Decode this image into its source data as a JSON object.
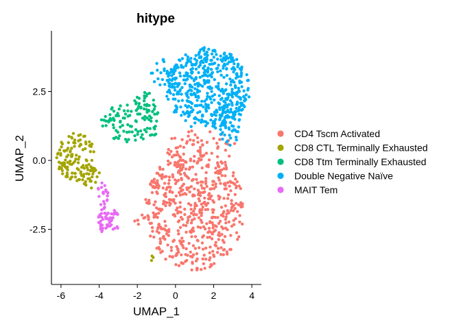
{
  "chart_data": {
    "type": "scatter",
    "title": "hitype",
    "xlabel": "UMAP_1",
    "ylabel": "UMAP_2",
    "xlim": [
      -6.5,
      4.5
    ],
    "ylim": [
      -4.5,
      4.7
    ],
    "xticks": [
      -6,
      -4,
      -2,
      0,
      2,
      4
    ],
    "yticks": [
      -2.5,
      0.0,
      2.5
    ],
    "ytick_labels": [
      "-2.5",
      "0.0",
      "2.5"
    ],
    "grid": false,
    "legend_position": "right",
    "series": [
      {
        "name": "CD4 Tscm Activated",
        "color": "#F8766D",
        "clusters": [
          {
            "cx": 1.0,
            "cy": -1.8,
            "rx": 2.6,
            "ry": 2.2,
            "n": 560,
            "seed": 11
          },
          {
            "cx": 1.3,
            "cy": 0.5,
            "rx": 1.9,
            "ry": 0.6,
            "n": 50,
            "seed": 12
          },
          {
            "cx": -1.7,
            "cy": -2.1,
            "rx": 0.5,
            "ry": 0.3,
            "n": 8,
            "seed": 13
          }
        ]
      },
      {
        "name": "CD8 CTL Terminally Exhausted",
        "color": "#A3A500",
        "clusters": [
          {
            "cx": -5.2,
            "cy": 0.1,
            "rx": 1.05,
            "ry": 0.9,
            "n": 110,
            "seed": 21
          },
          {
            "cx": -4.5,
            "cy": -0.6,
            "rx": 0.6,
            "ry": 0.5,
            "n": 30,
            "seed": 22
          },
          {
            "cx": -1.2,
            "cy": -3.55,
            "rx": 0.15,
            "ry": 0.2,
            "n": 3,
            "seed": 23
          }
        ]
      },
      {
        "name": "CD8 Ttm Terminally Exhausted",
        "color": "#00BF7D",
        "clusters": [
          {
            "cx": -2.3,
            "cy": 1.4,
            "rx": 1.6,
            "ry": 0.75,
            "n": 100,
            "seed": 31
          },
          {
            "cx": -1.6,
            "cy": 2.0,
            "rx": 0.6,
            "ry": 0.5,
            "n": 25,
            "seed": 32
          }
        ]
      },
      {
        "name": "Double Negative Naïve",
        "color": "#00B0F6",
        "clusters": [
          {
            "cx": 1.7,
            "cy": 2.6,
            "rx": 2.2,
            "ry": 1.5,
            "n": 500,
            "seed": 41
          },
          {
            "cx": 2.9,
            "cy": 1.2,
            "rx": 0.6,
            "ry": 0.7,
            "n": 40,
            "seed": 42
          },
          {
            "cx": -0.6,
            "cy": 3.2,
            "rx": 0.7,
            "ry": 0.5,
            "n": 25,
            "seed": 43
          }
        ]
      },
      {
        "name": "MAIT Tem",
        "color": "#E76BF3",
        "clusters": [
          {
            "cx": -3.5,
            "cy": -2.2,
            "rx": 0.55,
            "ry": 0.55,
            "n": 55,
            "seed": 51
          },
          {
            "cx": -3.8,
            "cy": -1.2,
            "rx": 0.3,
            "ry": 0.5,
            "n": 20,
            "seed": 52
          }
        ]
      }
    ]
  }
}
